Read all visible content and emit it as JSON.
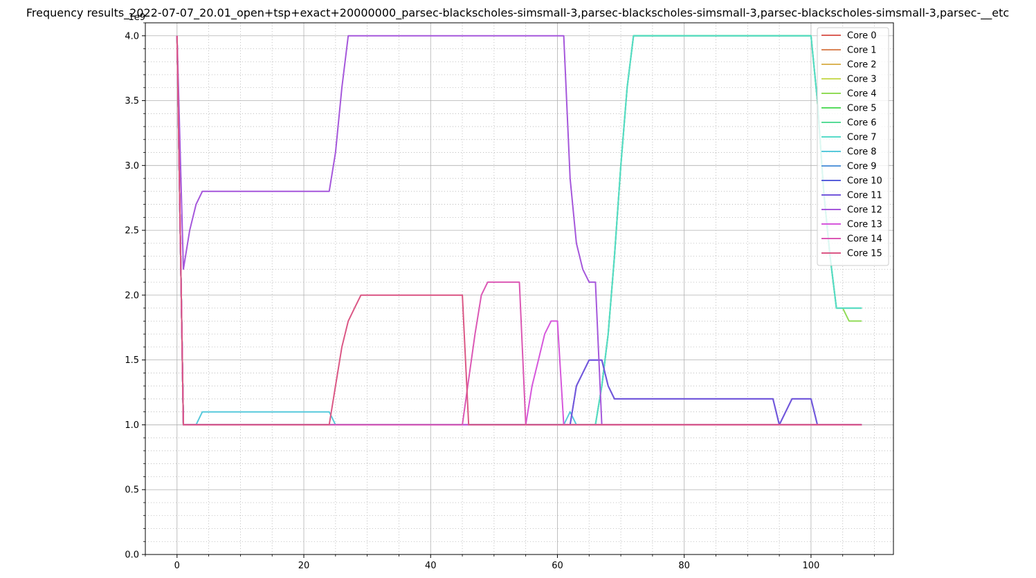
{
  "chart_data": {
    "type": "line",
    "title": "Frequency results_2022-07-07_20.01_open+tsp+exact+20000000_parsec-blackscholes-simsmall-3,parsec-blackscholes-simsmall-3,parsec-blackscholes-simsmall-3,parsec-__etc",
    "xlabel": "",
    "ylabel": "",
    "y_offset_label": "1e9",
    "xlim": [
      -5,
      113
    ],
    "ylim": [
      0,
      4.1
    ],
    "x_ticks": [
      0,
      20,
      40,
      60,
      80,
      100
    ],
    "x_tick_labels": [
      "0",
      "20",
      "40",
      "60",
      "80",
      "100"
    ],
    "y_ticks": [
      0,
      0.5,
      1.0,
      1.5,
      2.0,
      2.5,
      3.0,
      3.5,
      4.0
    ],
    "y_tick_labels": [
      "0.0",
      "0.5",
      "1.0",
      "1.5",
      "2.0",
      "2.5",
      "3.0",
      "3.5",
      "4.0"
    ],
    "grid": "major solid, minor dotted",
    "legend_position": "top-right",
    "series": [
      {
        "name": "Core 0",
        "color": "#db5f57",
        "x": [
          0,
          1,
          108
        ],
        "y": [
          4.0,
          1.0,
          1.0
        ]
      },
      {
        "name": "Core 1",
        "color": "#db8557",
        "x": [
          0,
          1,
          108
        ],
        "y": [
          4.0,
          1.0,
          1.0
        ]
      },
      {
        "name": "Core 2",
        "color": "#dbb457",
        "x": [
          0,
          1,
          108
        ],
        "y": [
          4.0,
          1.0,
          1.0
        ]
      },
      {
        "name": "Core 3",
        "color": "#c9db57",
        "x": [
          0,
          1,
          108
        ],
        "y": [
          4.0,
          1.0,
          1.0
        ]
      },
      {
        "name": "Core 4",
        "color": "#91db57",
        "x": [
          0,
          1,
          66,
          67,
          68,
          69,
          70,
          71,
          72,
          100,
          101,
          102,
          103,
          104,
          105,
          106,
          107,
          108
        ],
        "y": [
          4.0,
          1.0,
          1.0,
          1.3,
          1.7,
          2.3,
          3.0,
          3.6,
          4.0,
          4.0,
          3.5,
          2.8,
          2.3,
          1.9,
          1.9,
          1.8,
          1.8,
          1.8
        ]
      },
      {
        "name": "Core 5",
        "color": "#57db5f",
        "x": [
          0,
          1,
          66,
          67,
          68,
          69,
          70,
          71,
          72,
          100,
          101,
          102,
          103,
          104,
          108
        ],
        "y": [
          4.0,
          1.0,
          1.0,
          1.3,
          1.7,
          2.3,
          3.0,
          3.6,
          4.0,
          4.0,
          3.5,
          2.8,
          2.3,
          1.9,
          1.9
        ]
      },
      {
        "name": "Core 6",
        "color": "#57db97",
        "x": [
          0,
          1,
          66,
          67,
          68,
          69,
          70,
          71,
          72,
          100,
          101,
          102,
          103,
          104,
          108
        ],
        "y": [
          4.0,
          1.0,
          1.0,
          1.3,
          1.7,
          2.3,
          3.0,
          3.6,
          4.0,
          4.0,
          3.5,
          2.8,
          2.3,
          1.9,
          1.9
        ]
      },
      {
        "name": "Core 7",
        "color": "#57dbc9",
        "x": [
          0,
          1,
          66,
          67,
          68,
          69,
          70,
          71,
          72,
          100,
          101,
          102,
          103,
          104,
          108
        ],
        "y": [
          4.0,
          1.0,
          1.0,
          1.3,
          1.7,
          2.3,
          3.0,
          3.6,
          4.0,
          4.0,
          3.5,
          2.8,
          2.3,
          1.9,
          1.9
        ]
      },
      {
        "name": "Core 8",
        "color": "#57c9db",
        "x": [
          0,
          1,
          3,
          4,
          24,
          25,
          61,
          62,
          63,
          108
        ],
        "y": [
          4.0,
          1.0,
          1.0,
          1.1,
          1.1,
          1.0,
          1.0,
          1.1,
          1.0,
          1.0
        ]
      },
      {
        "name": "Core 9",
        "color": "#5797db",
        "x": [
          0,
          1,
          108
        ],
        "y": [
          4.0,
          1.0,
          1.0
        ]
      },
      {
        "name": "Core 10",
        "color": "#575fdb",
        "x": [
          0,
          1,
          62,
          63,
          65,
          67,
          68,
          69,
          94,
          95,
          97,
          100,
          101,
          108
        ],
        "y": [
          4.0,
          1.0,
          1.0,
          1.3,
          1.5,
          1.5,
          1.3,
          1.2,
          1.2,
          1.0,
          1.2,
          1.2,
          1.0,
          1.0
        ]
      },
      {
        "name": "Core 11",
        "color": "#7357db",
        "x": [
          0,
          1,
          62,
          63,
          65,
          67,
          68,
          69,
          94,
          95,
          97,
          100,
          101,
          108
        ],
        "y": [
          4.0,
          1.0,
          1.0,
          1.3,
          1.5,
          1.5,
          1.3,
          1.2,
          1.2,
          1.0,
          1.2,
          1.2,
          1.0,
          1.0
        ]
      },
      {
        "name": "Core 12",
        "color": "#a557db",
        "x": [
          0,
          1,
          2,
          3,
          4,
          24,
          25,
          26,
          27,
          61,
          62,
          63,
          64,
          65,
          66,
          67,
          108
        ],
        "y": [
          4.0,
          2.2,
          2.5,
          2.7,
          2.8,
          2.8,
          3.1,
          3.6,
          4.0,
          4.0,
          2.9,
          2.4,
          2.2,
          2.1,
          2.1,
          1.0,
          1.0
        ]
      },
      {
        "name": "Core 13",
        "color": "#d657db",
        "x": [
          0,
          1,
          55,
          56,
          57,
          58,
          59,
          60,
          61,
          108
        ],
        "y": [
          4.0,
          1.0,
          1.0,
          1.3,
          1.5,
          1.7,
          1.8,
          1.8,
          1.0,
          1.0
        ]
      },
      {
        "name": "Core 14",
        "color": "#db57b4",
        "x": [
          0,
          1,
          45,
          46,
          47,
          48,
          49,
          54,
          55,
          108
        ],
        "y": [
          4.0,
          1.0,
          1.0,
          1.35,
          1.7,
          2.0,
          2.1,
          2.1,
          1.0,
          1.0
        ]
      },
      {
        "name": "Core 15",
        "color": "#db5785",
        "x": [
          0,
          1,
          24,
          25,
          26,
          27,
          28,
          29,
          45,
          46,
          108
        ],
        "y": [
          4.0,
          1.0,
          1.0,
          1.3,
          1.6,
          1.8,
          1.9,
          2.0,
          2.0,
          1.0,
          1.0
        ]
      }
    ]
  }
}
